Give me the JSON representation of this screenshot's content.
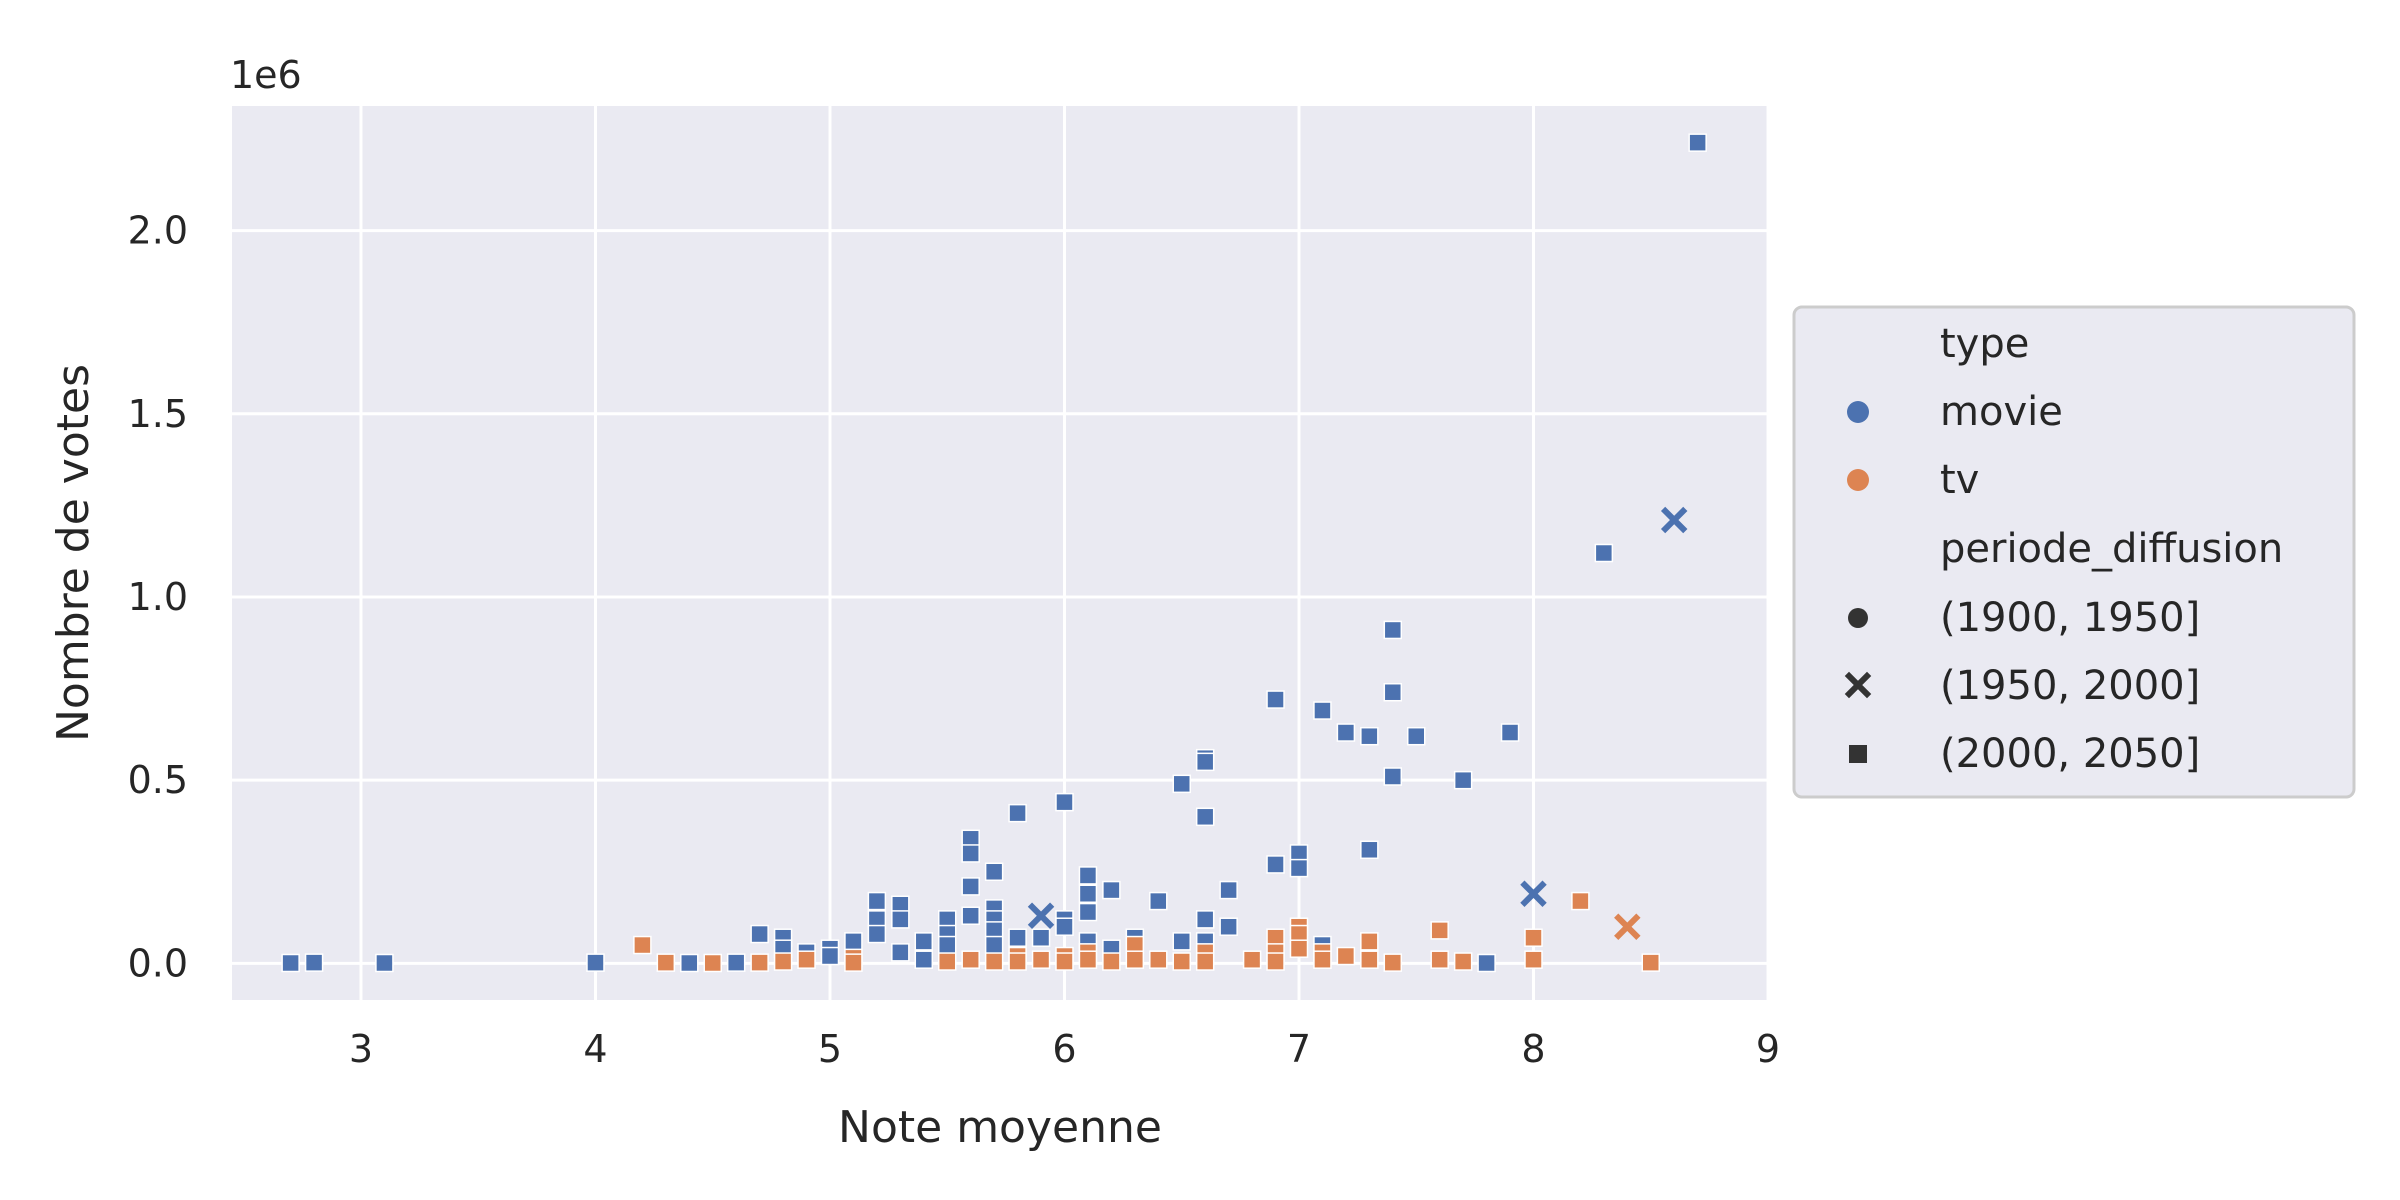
{
  "chart_data": {
    "type": "scatter",
    "xlabel": "Note moyenne",
    "ylabel": "Nombre de votes",
    "y_offset_label": "1e6",
    "xlim": [
      2.45,
      9.0
    ],
    "ylim": [
      -100000,
      2340000
    ],
    "x_ticks": [
      3,
      4,
      5,
      6,
      7,
      8,
      9
    ],
    "y_ticks": [
      0,
      500000,
      1000000,
      1500000,
      2000000
    ],
    "y_tick_labels": [
      "0.0",
      "0.5",
      "1.0",
      "1.5",
      "2.0"
    ],
    "grid": true,
    "legend_position": "right",
    "colors": {
      "movie": "#4c72b0",
      "tv": "#dd8452",
      "background": "#eaeaf2",
      "grid": "#ffffff"
    },
    "legend": {
      "hue_title": "type",
      "hue_entries": [
        {
          "label": "movie",
          "key": "movie"
        },
        {
          "label": "tv",
          "key": "tv"
        }
      ],
      "style_title": "periode_diffusion",
      "style_entries": [
        {
          "label": "(1900, 1950]",
          "marker": "circle"
        },
        {
          "label": "(1950, 2000]",
          "marker": "x"
        },
        {
          "label": "(2000, 2050]",
          "marker": "square"
        }
      ]
    },
    "series": [
      {
        "type": "movie",
        "periode": "(2000, 2050]",
        "marker": "square",
        "points": [
          [
            2.7,
            1000
          ],
          [
            2.8,
            2000
          ],
          [
            3.1,
            1000
          ],
          [
            4.0,
            2000
          ],
          [
            4.4,
            1000
          ],
          [
            4.6,
            2000
          ],
          [
            4.7,
            80000
          ],
          [
            4.8,
            70000
          ],
          [
            4.8,
            40000
          ],
          [
            4.9,
            30000
          ],
          [
            5.0,
            40000
          ],
          [
            5.0,
            20000
          ],
          [
            5.1,
            60000
          ],
          [
            5.2,
            170000
          ],
          [
            5.2,
            120000
          ],
          [
            5.2,
            80000
          ],
          [
            5.3,
            160000
          ],
          [
            5.3,
            120000
          ],
          [
            5.3,
            30000
          ],
          [
            5.4,
            60000
          ],
          [
            5.4,
            10000
          ],
          [
            5.5,
            120000
          ],
          [
            5.5,
            80000
          ],
          [
            5.5,
            50000
          ],
          [
            5.6,
            340000
          ],
          [
            5.6,
            300000
          ],
          [
            5.6,
            210000
          ],
          [
            5.6,
            130000
          ],
          [
            5.7,
            250000
          ],
          [
            5.7,
            150000
          ],
          [
            5.7,
            120000
          ],
          [
            5.7,
            90000
          ],
          [
            5.7,
            50000
          ],
          [
            5.8,
            410000
          ],
          [
            5.8,
            70000
          ],
          [
            5.9,
            70000
          ],
          [
            6.0,
            440000
          ],
          [
            6.0,
            120000
          ],
          [
            6.0,
            100000
          ],
          [
            6.1,
            240000
          ],
          [
            6.1,
            190000
          ],
          [
            6.1,
            140000
          ],
          [
            6.1,
            60000
          ],
          [
            6.2,
            200000
          ],
          [
            6.2,
            40000
          ],
          [
            6.3,
            70000
          ],
          [
            6.4,
            170000
          ],
          [
            6.5,
            490000
          ],
          [
            6.5,
            60000
          ],
          [
            6.6,
            560000
          ],
          [
            6.6,
            550000
          ],
          [
            6.6,
            400000
          ],
          [
            6.6,
            120000
          ],
          [
            6.6,
            60000
          ],
          [
            6.7,
            200000
          ],
          [
            6.7,
            100000
          ],
          [
            6.9,
            720000
          ],
          [
            6.9,
            270000
          ],
          [
            7.0,
            300000
          ],
          [
            7.0,
            260000
          ],
          [
            7.1,
            690000
          ],
          [
            7.1,
            50000
          ],
          [
            7.2,
            630000
          ],
          [
            7.3,
            620000
          ],
          [
            7.3,
            310000
          ],
          [
            7.4,
            910000
          ],
          [
            7.4,
            740000
          ],
          [
            7.4,
            510000
          ],
          [
            7.5,
            620000
          ],
          [
            7.7,
            500000
          ],
          [
            7.8,
            1000
          ],
          [
            7.9,
            630000
          ],
          [
            8.3,
            1120000
          ],
          [
            8.7,
            2240000
          ]
        ]
      },
      {
        "type": "movie",
        "periode": "(1950, 2000]",
        "marker": "x",
        "points": [
          [
            5.9,
            130000
          ],
          [
            8.0,
            190000
          ],
          [
            8.6,
            1210000
          ]
        ]
      },
      {
        "type": "tv",
        "periode": "(2000, 2050]",
        "marker": "square",
        "points": [
          [
            4.2,
            50000
          ],
          [
            4.3,
            2000
          ],
          [
            4.5,
            1000
          ],
          [
            4.7,
            2000
          ],
          [
            4.8,
            5000
          ],
          [
            4.9,
            10000
          ],
          [
            5.1,
            15000
          ],
          [
            5.1,
            2000
          ],
          [
            5.5,
            5000
          ],
          [
            5.6,
            10000
          ],
          [
            5.7,
            5000
          ],
          [
            5.8,
            20000
          ],
          [
            5.8,
            5000
          ],
          [
            5.9,
            10000
          ],
          [
            6.0,
            20000
          ],
          [
            6.0,
            5000
          ],
          [
            6.1,
            30000
          ],
          [
            6.1,
            10000
          ],
          [
            6.2,
            5000
          ],
          [
            6.3,
            50000
          ],
          [
            6.3,
            10000
          ],
          [
            6.4,
            10000
          ],
          [
            6.5,
            5000
          ],
          [
            6.6,
            30000
          ],
          [
            6.6,
            5000
          ],
          [
            6.8,
            10000
          ],
          [
            6.9,
            70000
          ],
          [
            6.9,
            30000
          ],
          [
            6.9,
            5000
          ],
          [
            7.0,
            100000
          ],
          [
            7.0,
            80000
          ],
          [
            7.0,
            40000
          ],
          [
            7.1,
            30000
          ],
          [
            7.1,
            10000
          ],
          [
            7.2,
            20000
          ],
          [
            7.3,
            60000
          ],
          [
            7.3,
            10000
          ],
          [
            7.4,
            2000
          ],
          [
            7.6,
            90000
          ],
          [
            7.6,
            10000
          ],
          [
            7.7,
            5000
          ],
          [
            8.0,
            70000
          ],
          [
            8.0,
            10000
          ],
          [
            8.2,
            170000
          ],
          [
            8.5,
            2000
          ]
        ]
      },
      {
        "type": "tv",
        "periode": "(1950, 2000]",
        "marker": "x",
        "points": [
          [
            8.4,
            100000
          ]
        ]
      }
    ]
  }
}
